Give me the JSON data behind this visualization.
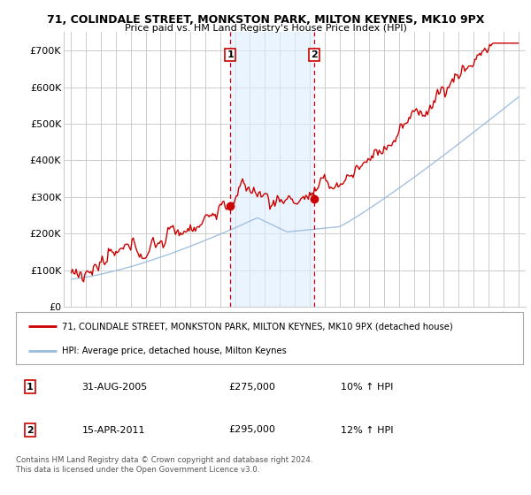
{
  "title1": "71, COLINDALE STREET, MONKSTON PARK, MILTON KEYNES, MK10 9PX",
  "title2": "Price paid vs. HM Land Registry's House Price Index (HPI)",
  "legend_line1": "71, COLINDALE STREET, MONKSTON PARK, MILTON KEYNES, MK10 9PX (detached house)",
  "legend_line2": "HPI: Average price, detached house, Milton Keynes",
  "annotation1_date": "31-AUG-2005",
  "annotation1_price": "£275,000",
  "annotation1_hpi": "10% ↑ HPI",
  "annotation2_date": "15-APR-2011",
  "annotation2_price": "£295,000",
  "annotation2_hpi": "12% ↑ HPI",
  "footnote": "Contains HM Land Registry data © Crown copyright and database right 2024.\nThis data is licensed under the Open Government Licence v3.0.",
  "background_color": "#ffffff",
  "plot_bg_color": "#ffffff",
  "grid_color": "#cccccc",
  "red_color": "#cc0000",
  "blue_color": "#99bbdd",
  "shade_color": "#ddeeff",
  "vline_color": "#cc0000",
  "marker1_x": 2005.67,
  "marker2_x": 2011.29,
  "marker1_y": 275000,
  "marker2_y": 295000,
  "ylim_min": 0,
  "ylim_max": 750000,
  "xlim_min": 1994.5,
  "xlim_max": 2025.5,
  "yticks": [
    0,
    100000,
    200000,
    300000,
    400000,
    500000,
    600000,
    700000
  ],
  "ytick_labels": [
    "£0",
    "£100K",
    "£200K",
    "£300K",
    "£400K",
    "£500K",
    "£600K",
    "£700K"
  ],
  "xticks": [
    1995,
    1996,
    1997,
    1998,
    1999,
    2000,
    2001,
    2002,
    2003,
    2004,
    2005,
    2006,
    2007,
    2008,
    2009,
    2010,
    2011,
    2012,
    2013,
    2014,
    2015,
    2016,
    2017,
    2018,
    2019,
    2020,
    2021,
    2022,
    2023,
    2024,
    2025
  ]
}
